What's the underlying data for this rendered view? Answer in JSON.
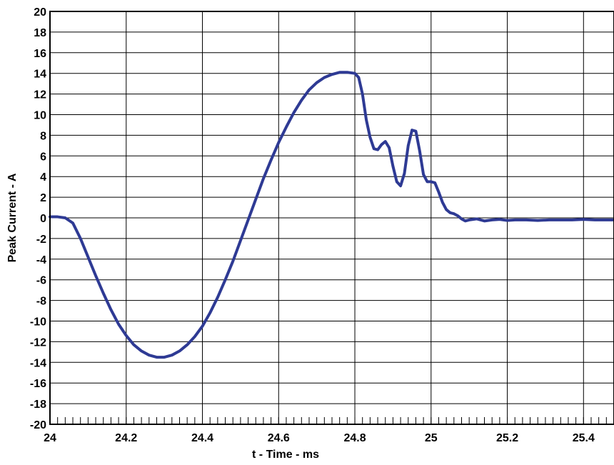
{
  "chart_data": {
    "type": "line",
    "title": "",
    "xlabel": "t - Time - ms",
    "ylabel": "Peak Current - A",
    "xlim": [
      24,
      25.48
    ],
    "ylim": [
      -20,
      20
    ],
    "x_ticks": [
      24,
      24.2,
      24.4,
      24.6,
      24.8,
      25,
      25.2,
      25.4
    ],
    "x_tick_labels": [
      "24",
      "24.2",
      "24.4",
      "24.6",
      "24.8",
      "25",
      "25.2",
      "25.4"
    ],
    "y_ticks": [
      20,
      18,
      16,
      14,
      12,
      10,
      8,
      6,
      4,
      2,
      0,
      -2,
      -4,
      -6,
      -8,
      -10,
      -12,
      -14,
      -16,
      -18,
      -20
    ],
    "y_tick_labels": [
      "20",
      "18",
      "16",
      "14",
      "12",
      "10",
      "8",
      "6",
      "4",
      "2",
      "0",
      "-2",
      "-4",
      "-6",
      "-8",
      "-10",
      "-12",
      "-14",
      "-16",
      "-18",
      "-20"
    ],
    "grid": true,
    "line_color": "#2e3a94",
    "series": [
      {
        "x": [
          24.0,
          24.02,
          24.04,
          24.06,
          24.08,
          24.1,
          24.12,
          24.14,
          24.16,
          24.18,
          24.2,
          24.22,
          24.24,
          24.26,
          24.28,
          24.3,
          24.32,
          24.34,
          24.36,
          24.38,
          24.4,
          24.42,
          24.44,
          24.46,
          24.48,
          24.5,
          24.52,
          24.54,
          24.56,
          24.58,
          24.6,
          24.62,
          24.64,
          24.66,
          24.68,
          24.7,
          24.72,
          24.74,
          24.76,
          24.78,
          24.8,
          24.81,
          24.82,
          24.83,
          24.84,
          24.85,
          24.86,
          24.87,
          24.88,
          24.89,
          24.9,
          24.91,
          24.92,
          24.93,
          24.94,
          24.95,
          24.96,
          24.97,
          24.98,
          24.99,
          25.0,
          25.01,
          25.02,
          25.03,
          25.04,
          25.05,
          25.06,
          25.07,
          25.08,
          25.09,
          25.1,
          25.12,
          25.14,
          25.16,
          25.18,
          25.2,
          25.22,
          25.25,
          25.28,
          25.31,
          25.34,
          25.37,
          25.4,
          25.43,
          25.46,
          25.48
        ],
        "y": [
          0.1,
          0.1,
          0.0,
          -0.5,
          -2.0,
          -3.8,
          -5.6,
          -7.3,
          -8.9,
          -10.3,
          -11.4,
          -12.3,
          -12.9,
          -13.3,
          -13.5,
          -13.5,
          -13.3,
          -12.9,
          -12.3,
          -11.5,
          -10.5,
          -9.2,
          -7.7,
          -6.0,
          -4.2,
          -2.2,
          -0.2,
          1.8,
          3.8,
          5.6,
          7.3,
          8.8,
          10.2,
          11.4,
          12.4,
          13.1,
          13.6,
          13.9,
          14.1,
          14.1,
          14.0,
          13.6,
          12.0,
          9.5,
          7.8,
          6.7,
          6.6,
          7.1,
          7.4,
          6.8,
          5.0,
          3.5,
          3.1,
          4.3,
          7.0,
          8.5,
          8.4,
          6.5,
          4.2,
          3.5,
          3.5,
          3.4,
          2.5,
          1.5,
          0.8,
          0.5,
          0.4,
          0.2,
          -0.1,
          -0.3,
          -0.2,
          -0.1,
          -0.3,
          -0.2,
          -0.15,
          -0.25,
          -0.2,
          -0.2,
          -0.25,
          -0.2,
          -0.2,
          -0.2,
          -0.15,
          -0.2,
          -0.2,
          -0.2
        ]
      }
    ]
  }
}
